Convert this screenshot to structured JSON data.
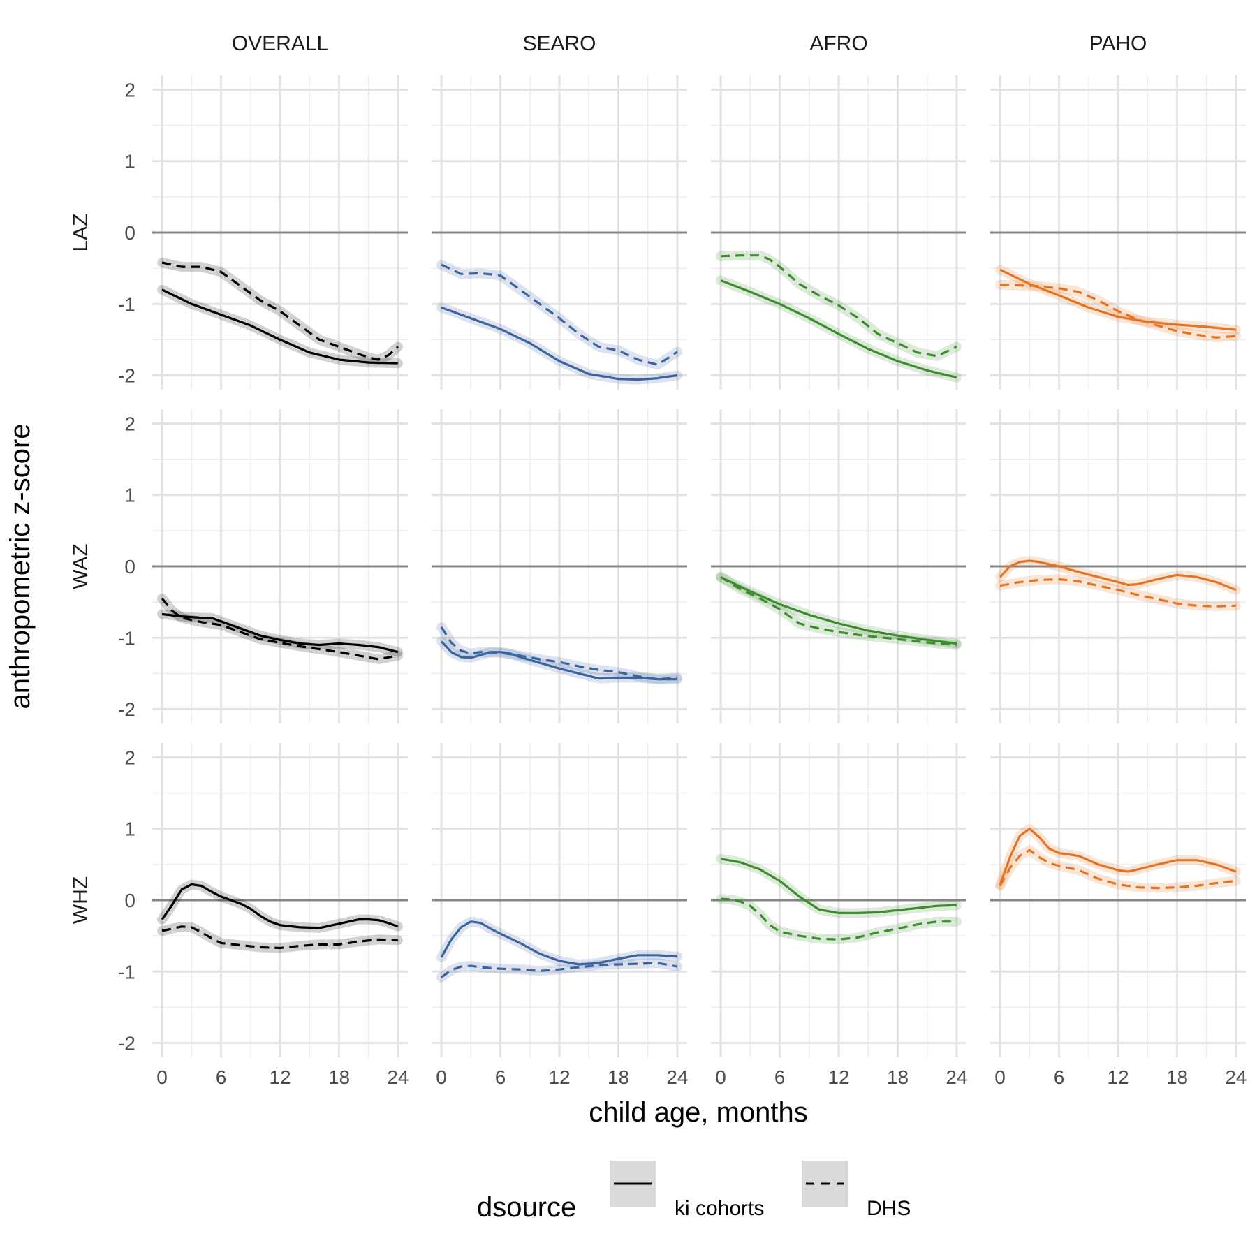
{
  "chart_data": {
    "type": "line",
    "xlabel": "child age, months",
    "ylabel": "anthropometric z-score",
    "x_ticks": [
      "0",
      "6",
      "12",
      "18",
      "24"
    ],
    "y_ticks": [
      "-2",
      "-1",
      "0",
      "1",
      "2"
    ],
    "xlim": [
      -1,
      25
    ],
    "ylim": [
      -2.2,
      2.2
    ],
    "reference_line": 0,
    "grid": true,
    "columns": [
      {
        "name": "OVERALL",
        "color": "#000000"
      },
      {
        "name": "SEARO",
        "color": "#3b64a0"
      },
      {
        "name": "AFRO",
        "color": "#3d8b2f"
      },
      {
        "name": "PAHO",
        "color": "#e67321"
      }
    ],
    "rows": [
      "LAZ",
      "WAZ",
      "WHZ"
    ],
    "legend": {
      "title": "dsource",
      "position": "bottom",
      "entries": [
        {
          "label": "ki cohorts",
          "dash": "solid"
        },
        {
          "label": "DHS",
          "dash": "dashed"
        }
      ]
    },
    "series": [
      {
        "row": "LAZ",
        "col": "OVERALL",
        "source": "ki cohorts",
        "x": [
          0,
          3,
          6,
          9,
          12,
          15,
          18,
          21,
          24
        ],
        "y": [
          -0.8,
          -1.0,
          -1.15,
          -1.3,
          -1.5,
          -1.68,
          -1.78,
          -1.82,
          -1.83
        ]
      },
      {
        "row": "LAZ",
        "col": "OVERALL",
        "source": "DHS",
        "x": [
          0,
          2,
          4,
          6,
          8,
          10,
          12,
          14,
          16,
          18,
          20,
          21,
          22,
          23,
          24
        ],
        "y": [
          -0.42,
          -0.48,
          -0.48,
          -0.55,
          -0.75,
          -0.95,
          -1.1,
          -1.3,
          -1.5,
          -1.6,
          -1.7,
          -1.75,
          -1.78,
          -1.72,
          -1.6
        ]
      },
      {
        "row": "LAZ",
        "col": "SEARO",
        "source": "ki cohorts",
        "x": [
          0,
          3,
          6,
          9,
          12,
          15,
          18,
          20,
          22,
          24
        ],
        "y": [
          -1.05,
          -1.2,
          -1.35,
          -1.55,
          -1.8,
          -1.98,
          -2.05,
          -2.06,
          -2.04,
          -2.0
        ]
      },
      {
        "row": "LAZ",
        "col": "SEARO",
        "source": "DHS",
        "x": [
          0,
          2,
          4,
          6,
          8,
          10,
          12,
          14,
          16,
          18,
          20,
          22,
          24
        ],
        "y": [
          -0.45,
          -0.58,
          -0.57,
          -0.6,
          -0.8,
          -1.0,
          -1.2,
          -1.42,
          -1.6,
          -1.65,
          -1.78,
          -1.85,
          -1.67
        ]
      },
      {
        "row": "LAZ",
        "col": "AFRO",
        "source": "ki cohorts",
        "x": [
          0,
          3,
          6,
          9,
          12,
          15,
          18,
          21,
          24
        ],
        "y": [
          -0.67,
          -0.83,
          -1.0,
          -1.2,
          -1.42,
          -1.63,
          -1.8,
          -1.93,
          -2.03
        ]
      },
      {
        "row": "LAZ",
        "col": "AFRO",
        "source": "DHS",
        "x": [
          0,
          2,
          4,
          5,
          6,
          8,
          10,
          12,
          14,
          16,
          18,
          20,
          22,
          24
        ],
        "y": [
          -0.33,
          -0.32,
          -0.32,
          -0.38,
          -0.48,
          -0.72,
          -0.88,
          -1.02,
          -1.2,
          -1.42,
          -1.55,
          -1.68,
          -1.73,
          -1.6
        ]
      },
      {
        "row": "LAZ",
        "col": "PAHO",
        "source": "ki cohorts",
        "x": [
          0,
          3,
          6,
          9,
          12,
          15,
          18,
          21,
          24
        ],
        "y": [
          -0.52,
          -0.72,
          -0.88,
          -1.05,
          -1.18,
          -1.25,
          -1.29,
          -1.32,
          -1.36
        ]
      },
      {
        "row": "LAZ",
        "col": "PAHO",
        "source": "DHS",
        "x": [
          0,
          2,
          4,
          6,
          8,
          10,
          12,
          14,
          16,
          18,
          20,
          22,
          24
        ],
        "y": [
          -0.73,
          -0.74,
          -0.75,
          -0.78,
          -0.83,
          -0.95,
          -1.1,
          -1.22,
          -1.3,
          -1.38,
          -1.43,
          -1.47,
          -1.45
        ]
      },
      {
        "row": "WAZ",
        "col": "OVERALL",
        "source": "ki cohorts",
        "x": [
          0,
          2,
          4,
          5,
          6,
          8,
          10,
          12,
          14,
          16,
          18,
          20,
          22,
          24
        ],
        "y": [
          -0.67,
          -0.7,
          -0.72,
          -0.72,
          -0.77,
          -0.87,
          -0.97,
          -1.03,
          -1.08,
          -1.1,
          -1.08,
          -1.1,
          -1.13,
          -1.2
        ]
      },
      {
        "row": "WAZ",
        "col": "OVERALL",
        "source": "DHS",
        "x": [
          0,
          1,
          2,
          3,
          4,
          6,
          8,
          10,
          12,
          14,
          16,
          18,
          20,
          22,
          24
        ],
        "y": [
          -0.45,
          -0.62,
          -0.72,
          -0.75,
          -0.78,
          -0.82,
          -0.92,
          -1.02,
          -1.07,
          -1.12,
          -1.16,
          -1.2,
          -1.25,
          -1.3,
          -1.25
        ]
      },
      {
        "row": "WAZ",
        "col": "SEARO",
        "source": "ki cohorts",
        "x": [
          0,
          1,
          2,
          3,
          4,
          5,
          6,
          7,
          8,
          10,
          12,
          14,
          16,
          18,
          20,
          22,
          24
        ],
        "y": [
          -1.05,
          -1.2,
          -1.27,
          -1.28,
          -1.24,
          -1.2,
          -1.2,
          -1.22,
          -1.27,
          -1.35,
          -1.43,
          -1.5,
          -1.57,
          -1.56,
          -1.56,
          -1.58,
          -1.58
        ]
      },
      {
        "row": "WAZ",
        "col": "SEARO",
        "source": "DHS",
        "x": [
          0,
          1,
          2,
          3,
          4,
          6,
          8,
          10,
          12,
          14,
          16,
          18,
          20,
          22,
          24
        ],
        "y": [
          -0.85,
          -1.07,
          -1.18,
          -1.22,
          -1.2,
          -1.21,
          -1.25,
          -1.3,
          -1.34,
          -1.4,
          -1.45,
          -1.48,
          -1.54,
          -1.58,
          -1.56
        ]
      },
      {
        "row": "WAZ",
        "col": "AFRO",
        "source": "ki cohorts",
        "x": [
          0,
          3,
          6,
          9,
          12,
          15,
          18,
          21,
          24
        ],
        "y": [
          -0.15,
          -0.35,
          -0.53,
          -0.68,
          -0.8,
          -0.9,
          -0.97,
          -1.03,
          -1.08
        ]
      },
      {
        "row": "WAZ",
        "col": "AFRO",
        "source": "DHS",
        "x": [
          0,
          2,
          4,
          6,
          8,
          10,
          12,
          14,
          16,
          18,
          20,
          22,
          24
        ],
        "y": [
          -0.15,
          -0.32,
          -0.45,
          -0.6,
          -0.8,
          -0.87,
          -0.92,
          -0.96,
          -0.99,
          -1.02,
          -1.05,
          -1.08,
          -1.1
        ]
      },
      {
        "row": "WAZ",
        "col": "PAHO",
        "source": "ki cohorts",
        "x": [
          0,
          1,
          2,
          3,
          4,
          6,
          8,
          10,
          12,
          13,
          14,
          16,
          18,
          20,
          22,
          24
        ],
        "y": [
          -0.15,
          0.0,
          0.06,
          0.08,
          0.06,
          0.0,
          -0.08,
          -0.15,
          -0.22,
          -0.26,
          -0.25,
          -0.18,
          -0.12,
          -0.15,
          -0.22,
          -0.33
        ]
      },
      {
        "row": "WAZ",
        "col": "PAHO",
        "source": "DHS",
        "x": [
          0,
          2,
          4,
          6,
          8,
          10,
          12,
          14,
          16,
          18,
          20,
          22,
          24
        ],
        "y": [
          -0.27,
          -0.22,
          -0.19,
          -0.18,
          -0.21,
          -0.27,
          -0.33,
          -0.4,
          -0.46,
          -0.52,
          -0.55,
          -0.56,
          -0.55
        ]
      },
      {
        "row": "WHZ",
        "col": "OVERALL",
        "source": "ki cohorts",
        "x": [
          0,
          1,
          2,
          3,
          4,
          5,
          6,
          7,
          8,
          9,
          10,
          11,
          12,
          14,
          16,
          18,
          20,
          21,
          22,
          23,
          24
        ],
        "y": [
          -0.27,
          -0.07,
          0.15,
          0.22,
          0.2,
          0.12,
          0.05,
          0.0,
          -0.05,
          -0.12,
          -0.22,
          -0.3,
          -0.35,
          -0.38,
          -0.39,
          -0.33,
          -0.27,
          -0.27,
          -0.28,
          -0.32,
          -0.37
        ]
      },
      {
        "row": "WHZ",
        "col": "OVERALL",
        "source": "DHS",
        "x": [
          0,
          1,
          2,
          3,
          4,
          5,
          6,
          8,
          10,
          12,
          14,
          16,
          18,
          20,
          22,
          24
        ],
        "y": [
          -0.43,
          -0.4,
          -0.37,
          -0.38,
          -0.45,
          -0.53,
          -0.6,
          -0.63,
          -0.66,
          -0.67,
          -0.64,
          -0.62,
          -0.62,
          -0.58,
          -0.55,
          -0.56
        ]
      },
      {
        "row": "WHZ",
        "col": "SEARO",
        "source": "ki cohorts",
        "x": [
          0,
          1,
          2,
          3,
          4,
          5,
          6,
          8,
          10,
          12,
          14,
          16,
          18,
          20,
          22,
          24
        ],
        "y": [
          -0.8,
          -0.55,
          -0.38,
          -0.3,
          -0.32,
          -0.4,
          -0.47,
          -0.6,
          -0.75,
          -0.85,
          -0.9,
          -0.88,
          -0.82,
          -0.77,
          -0.77,
          -0.79
        ]
      },
      {
        "row": "WHZ",
        "col": "SEARO",
        "source": "DHS",
        "x": [
          0,
          1,
          2,
          3,
          4,
          6,
          8,
          10,
          12,
          14,
          16,
          18,
          20,
          22,
          24
        ],
        "y": [
          -1.08,
          -0.98,
          -0.93,
          -0.92,
          -0.94,
          -0.96,
          -0.97,
          -0.99,
          -0.97,
          -0.94,
          -0.91,
          -0.9,
          -0.89,
          -0.88,
          -0.93
        ]
      },
      {
        "row": "WHZ",
        "col": "AFRO",
        "source": "ki cohorts",
        "x": [
          0,
          2,
          4,
          6,
          8,
          10,
          12,
          14,
          16,
          18,
          20,
          22,
          24
        ],
        "y": [
          0.58,
          0.53,
          0.43,
          0.27,
          0.05,
          -0.13,
          -0.18,
          -0.18,
          -0.17,
          -0.14,
          -0.11,
          -0.08,
          -0.07
        ]
      },
      {
        "row": "WHZ",
        "col": "AFRO",
        "source": "DHS",
        "x": [
          0,
          1,
          2,
          3,
          4,
          5,
          6,
          8,
          10,
          12,
          14,
          16,
          18,
          20,
          22,
          24
        ],
        "y": [
          0.02,
          0.01,
          -0.02,
          -0.08,
          -0.2,
          -0.35,
          -0.44,
          -0.5,
          -0.54,
          -0.55,
          -0.52,
          -0.45,
          -0.4,
          -0.34,
          -0.3,
          -0.3
        ]
      },
      {
        "row": "WHZ",
        "col": "PAHO",
        "source": "ki cohorts",
        "x": [
          0,
          1,
          2,
          3,
          4,
          5,
          6,
          8,
          10,
          12,
          13,
          14,
          16,
          18,
          20,
          22,
          24
        ],
        "y": [
          0.22,
          0.6,
          0.9,
          1.0,
          0.88,
          0.72,
          0.66,
          0.62,
          0.5,
          0.42,
          0.4,
          0.43,
          0.5,
          0.56,
          0.56,
          0.5,
          0.4
        ]
      },
      {
        "row": "WHZ",
        "col": "PAHO",
        "source": "DHS",
        "x": [
          0,
          1,
          2,
          3,
          4,
          5,
          6,
          8,
          10,
          12,
          14,
          16,
          18,
          20,
          22,
          24
        ],
        "y": [
          0.2,
          0.45,
          0.62,
          0.7,
          0.6,
          0.52,
          0.48,
          0.42,
          0.3,
          0.22,
          0.18,
          0.17,
          0.18,
          0.2,
          0.24,
          0.27
        ]
      }
    ]
  }
}
